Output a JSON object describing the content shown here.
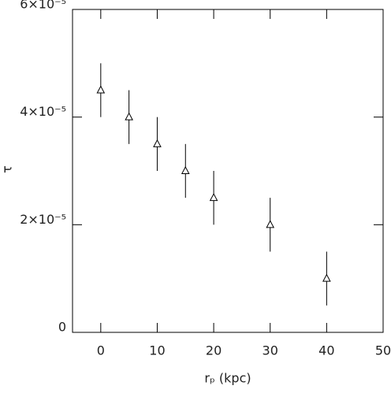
{
  "chart_data": {
    "type": "scatter",
    "xlabel": "rₚ (kpc)",
    "ylabel": "τ",
    "x": [
      0,
      5,
      10,
      15,
      20,
      30,
      40
    ],
    "series": [
      {
        "values": [
          4.5e-05,
          4e-05,
          3.5e-05,
          3e-05,
          2.5e-05,
          2e-05,
          1e-05
        ],
        "errors": [
          5e-06,
          5e-06,
          5e-06,
          5e-06,
          5e-06,
          5e-06,
          5e-06
        ],
        "color": "#000000",
        "marker": "triangle"
      }
    ],
    "xlim": [
      -5,
      50
    ],
    "xticks": [
      0,
      10,
      20,
      30,
      40,
      50
    ],
    "ylim": [
      0,
      6e-05
    ],
    "yticks": [
      0,
      {
        "value": 2e-05,
        "label": "2×10⁻⁵"
      },
      {
        "value": 4e-05,
        "label": "4×10⁻⁵"
      },
      {
        "value": 6e-05,
        "label": "6×10⁻⁵"
      }
    ],
    "grid": false
  }
}
